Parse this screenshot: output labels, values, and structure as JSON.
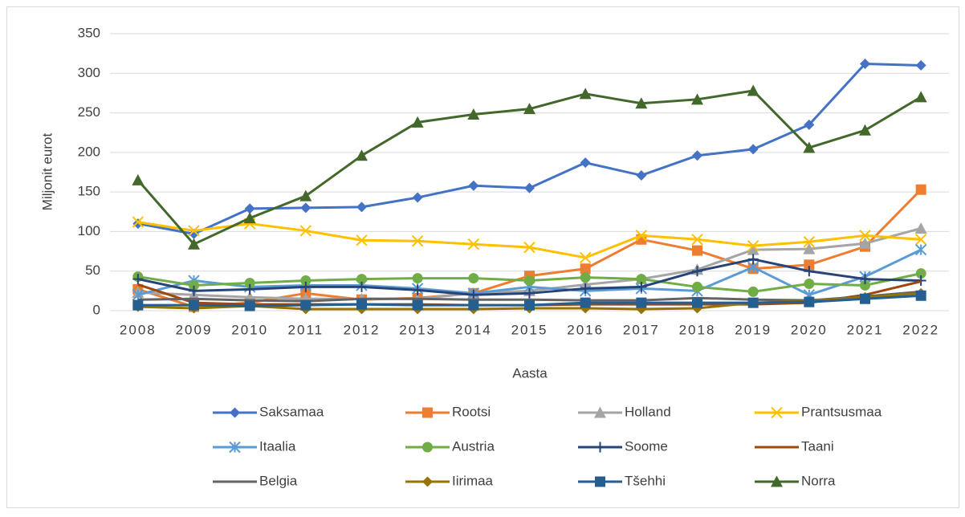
{
  "chart_data": {
    "type": "line",
    "x_label": "Aasta",
    "y_label": "Miljonit eurot",
    "categories": [
      "2008",
      "2009",
      "2010",
      "2011",
      "2012",
      "2013",
      "2014",
      "2015",
      "2016",
      "2017",
      "2018",
      "2019",
      "2020",
      "2021",
      "2022"
    ],
    "ylim": [
      0,
      350
    ],
    "yticks": [
      0,
      50,
      100,
      150,
      200,
      250,
      300,
      350
    ],
    "grid": true,
    "legend": "bottom",
    "series": [
      {
        "name": "Saksamaa",
        "color": "#4472c4",
        "marker": "diamond",
        "values": [
          110,
          97,
          129,
          130,
          131,
          143,
          158,
          155,
          187,
          171,
          196,
          204,
          235,
          312,
          310
        ]
      },
      {
        "name": "Rootsi",
        "color": "#ed7d31",
        "marker": "square",
        "values": [
          27,
          5,
          10,
          22,
          14,
          16,
          22,
          44,
          53,
          90,
          76,
          53,
          58,
          81,
          153
        ]
      },
      {
        "name": "Holland",
        "color": "#a5a5a5",
        "marker": "triangle",
        "values": [
          23,
          20,
          17,
          15,
          15,
          15,
          22,
          25,
          33,
          40,
          52,
          77,
          78,
          85,
          104
        ]
      },
      {
        "name": "Prantsusmaa",
        "color": "#ffc000",
        "marker": "x",
        "values": [
          112,
          101,
          110,
          101,
          89,
          88,
          84,
          80,
          67,
          95,
          90,
          82,
          87,
          95,
          90
        ]
      },
      {
        "name": "Itaalia",
        "color": "#5b9bd5",
        "marker": "asterisk",
        "values": [
          20,
          38,
          30,
          32,
          32,
          28,
          22,
          30,
          25,
          28,
          25,
          55,
          20,
          43,
          77
        ]
      },
      {
        "name": "Austria",
        "color": "#70ad47",
        "marker": "circle",
        "values": [
          43,
          32,
          35,
          38,
          40,
          41,
          41,
          38,
          42,
          40,
          30,
          24,
          34,
          32,
          47
        ]
      },
      {
        "name": "Soome",
        "color": "#264478",
        "marker": "plus",
        "values": [
          40,
          25,
          27,
          30,
          30,
          26,
          20,
          22,
          28,
          30,
          50,
          65,
          50,
          40,
          38
        ]
      },
      {
        "name": "Taani",
        "color": "#9e480e",
        "marker": "none",
        "values": [
          33,
          10,
          8,
          8,
          8,
          8,
          7,
          7,
          8,
          8,
          8,
          8,
          10,
          20,
          37
        ]
      },
      {
        "name": "Belgia",
        "color": "#636363",
        "marker": "none",
        "values": [
          14,
          15,
          13,
          12,
          15,
          15,
          14,
          14,
          13,
          13,
          16,
          14,
          13,
          18,
          24
        ]
      },
      {
        "name": "Iirimaa",
        "color": "#997300",
        "marker": "diamond",
        "values": [
          5,
          3,
          6,
          2,
          2,
          2,
          2,
          3,
          3,
          2,
          3,
          10,
          12,
          17,
          22
        ]
      },
      {
        "name": "Tšehhi",
        "color": "#255e91",
        "marker": "square",
        "values": [
          7,
          7,
          6,
          7,
          8,
          7,
          7,
          7,
          10,
          10,
          10,
          10,
          11,
          15,
          19
        ]
      },
      {
        "name": "Norra",
        "color": "#43682b",
        "marker": "triangle",
        "values": [
          165,
          84,
          117,
          145,
          196,
          238,
          248,
          255,
          274,
          262,
          267,
          278,
          206,
          228,
          270
        ]
      }
    ]
  }
}
